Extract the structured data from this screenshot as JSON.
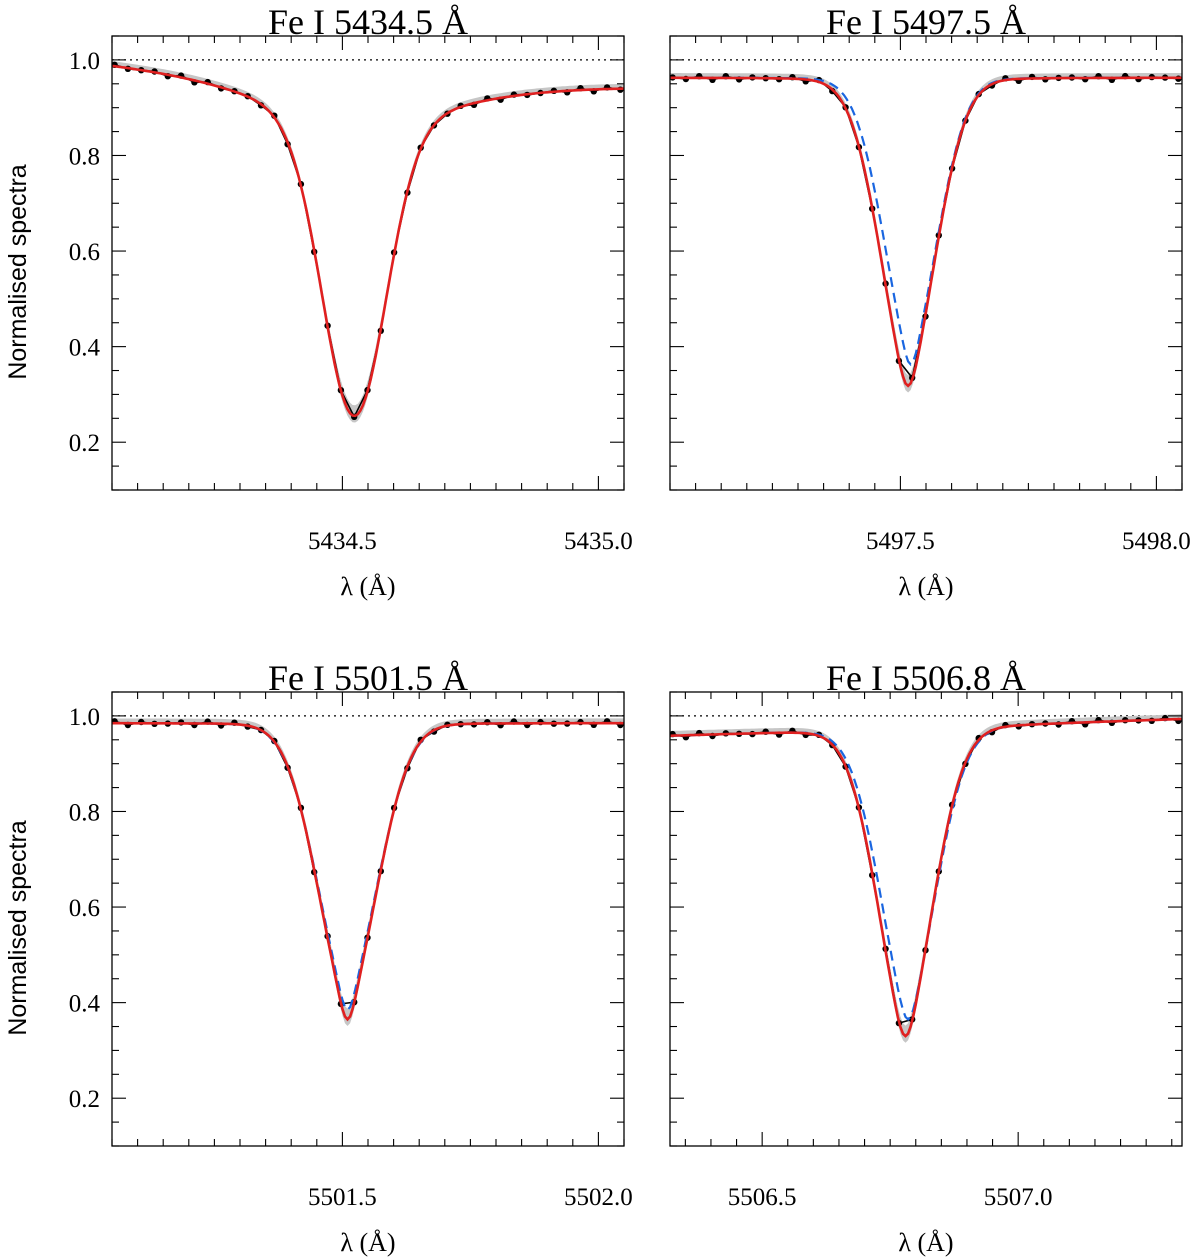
{
  "figure": {
    "ylabel": "Normalised spectra",
    "y_ticks": [
      0.2,
      0.4,
      0.6,
      0.8,
      1.0
    ],
    "y_tick_labels": [
      "0.2",
      "0.4",
      "0.6",
      "0.8",
      "1.0"
    ],
    "continuum_level": 1.0
  },
  "chart_data": [
    {
      "type": "line",
      "title": "Fe I  5434.5 Å",
      "xlabel": "λ (Å)",
      "ylabel": "Normalised spectra",
      "xlim": [
        5434.05,
        5435.05
      ],
      "ylim": [
        0.1,
        1.05
      ],
      "x_ticks": [
        5434.5,
        5435.0
      ],
      "x_tick_labels": [
        "5434.5",
        "5435.0"
      ],
      "line": {
        "center": 5434.523,
        "continuum": 0.99,
        "slope": -0.052,
        "depth": 0.735,
        "sigma": 0.062,
        "gamma": 0.24
      },
      "observed_min": 0.253,
      "series": [
        {
          "name": "observed",
          "style": "black dots with grey uncertainty band"
        },
        {
          "name": "model fit",
          "color": "#e02020"
        }
      ]
    },
    {
      "type": "line",
      "title": "Fe I  5497.5 Å",
      "xlabel": "λ (Å)",
      "ylabel": "Normalised spectra",
      "xlim": [
        5497.05,
        5498.05
      ],
      "ylim": [
        0.1,
        1.05
      ],
      "x_ticks": [
        5497.5,
        5498.0
      ],
      "x_tick_labels": [
        "5497.5",
        "5498.0"
      ],
      "line": {
        "center": 5497.515,
        "continuum": 0.963,
        "slope": 0.0,
        "depth": 0.645,
        "sigma": 0.058,
        "gamma": 0.03
      },
      "alt_model": {
        "center": 5497.52,
        "depth": 0.6,
        "sigma": 0.056,
        "gamma": 0.025
      },
      "observed_min": 0.315,
      "series": [
        {
          "name": "observed",
          "style": "black dots with grey uncertainty band"
        },
        {
          "name": "model fit",
          "color": "#e02020"
        },
        {
          "name": "alternative model",
          "color": "#1a66e0",
          "dash": true
        }
      ]
    },
    {
      "type": "line",
      "title": "Fe I  5501.5 Å",
      "xlabel": "λ (Å)",
      "ylabel": "Normalised spectra",
      "xlim": [
        5501.05,
        5502.05
      ],
      "ylim": [
        0.1,
        1.05
      ],
      "x_ticks": [
        5501.5,
        5502.0
      ],
      "x_tick_labels": [
        "5501.5",
        "5502.0"
      ],
      "line": {
        "center": 5501.51,
        "continuum": 0.985,
        "slope": 0.0,
        "depth": 0.62,
        "sigma": 0.062,
        "gamma": 0.025
      },
      "alt_model": {
        "center": 5501.51,
        "depth": 0.6,
        "sigma": 0.063,
        "gamma": 0.025
      },
      "observed_min": 0.355,
      "series": [
        {
          "name": "observed",
          "style": "black dots with grey uncertainty band"
        },
        {
          "name": "model fit",
          "color": "#e02020"
        },
        {
          "name": "alternative model",
          "color": "#1a66e0",
          "dash": true
        }
      ]
    },
    {
      "type": "line",
      "title": "Fe I  5506.8 Å",
      "xlabel": "λ (Å)",
      "ylabel": "Normalised spectra",
      "xlim": [
        5506.32,
        5507.32
      ],
      "ylim": [
        0.1,
        1.05
      ],
      "x_ticks": [
        5506.5,
        5507.0
      ],
      "x_tick_labels": [
        "5506.5",
        "5507.0"
      ],
      "line": {
        "center": 5506.78,
        "continuum": 0.975,
        "slope": 0.035,
        "depth": 0.645,
        "sigma": 0.058,
        "gamma": 0.03
      },
      "alt_model": {
        "center": 5506.785,
        "depth": 0.61,
        "sigma": 0.058,
        "gamma": 0.028
      },
      "observed_min": 0.323,
      "series": [
        {
          "name": "observed",
          "style": "black dots with grey uncertainty band"
        },
        {
          "name": "model fit",
          "color": "#e02020"
        },
        {
          "name": "alternative model",
          "color": "#1a66e0",
          "dash": true
        }
      ]
    }
  ]
}
